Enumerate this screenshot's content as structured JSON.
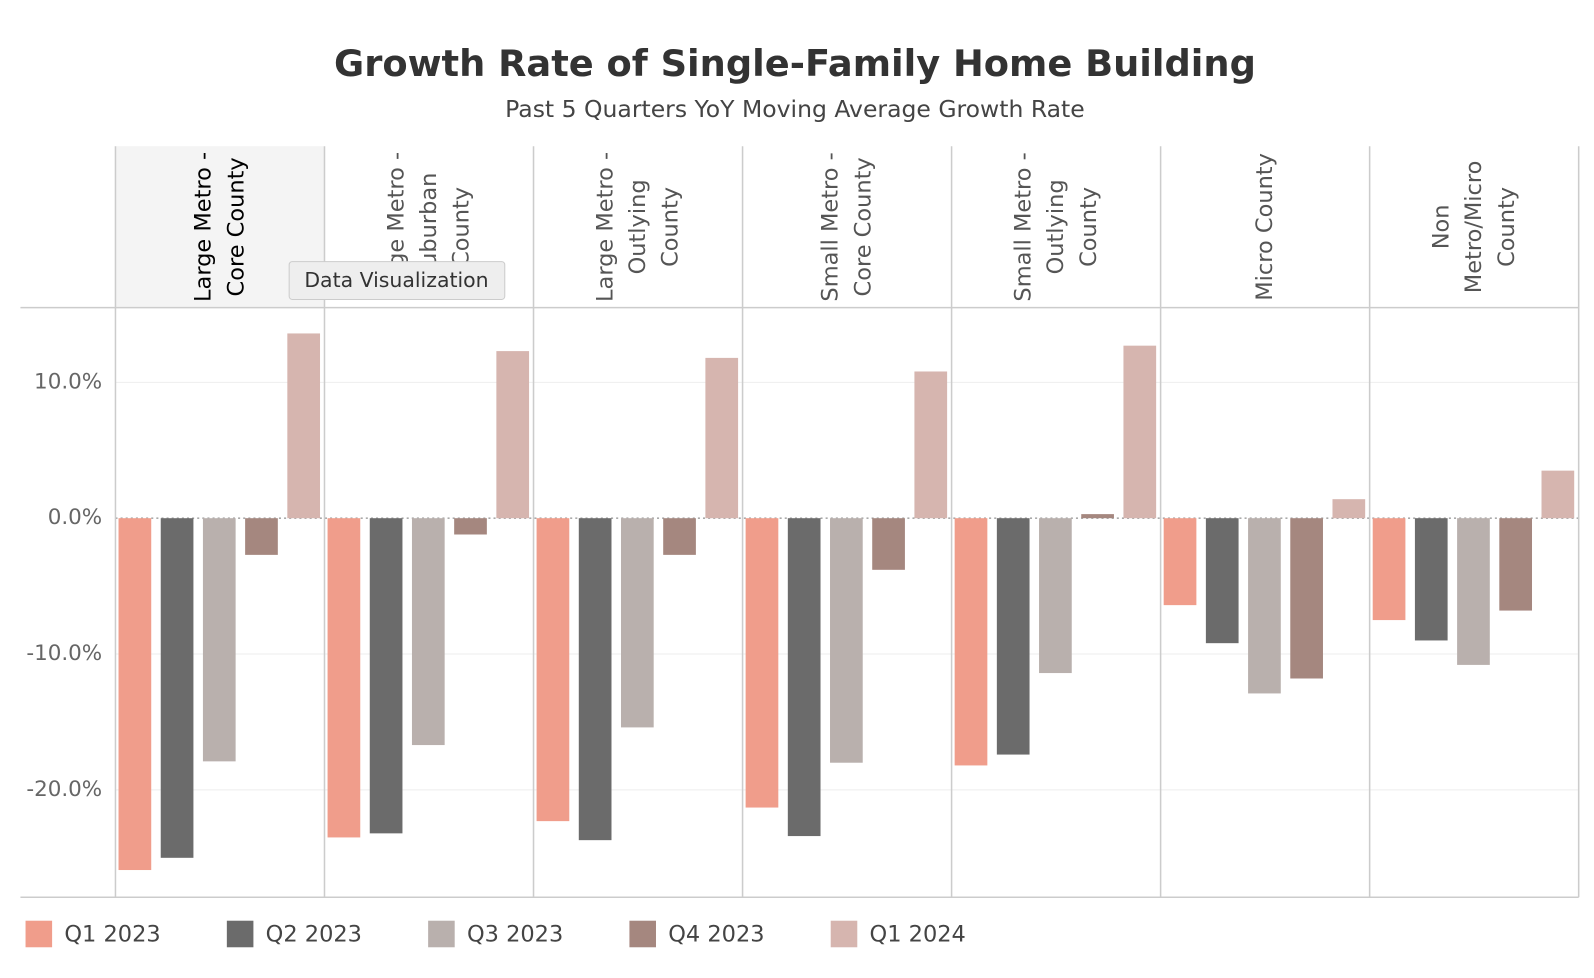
{
  "chart_data": {
    "type": "bar",
    "title": "Growth Rate of Single-Family Home Building",
    "subtitle": "Past 5 Quarters YoY Moving Average Growth Rate",
    "tooltip": "Data Visualization",
    "categories": [
      "Large Metro - Core County",
      "Large Metro - Suburban County",
      "Large Metro - Outlying County",
      "Small Metro - Core County",
      "Small Metro - Outlying County",
      "Micro County",
      "Non Metro/Micro County"
    ],
    "series": [
      {
        "name": "Q1 2023",
        "color": "#f09d8b",
        "values": [
          -25.9,
          -23.5,
          -22.3,
          -21.3,
          -18.2,
          -6.4,
          -7.5
        ]
      },
      {
        "name": "Q2 2023",
        "color": "#6b6b6b",
        "values": [
          -25.0,
          -23.2,
          -23.7,
          -23.4,
          -17.4,
          -9.2,
          -9.0
        ]
      },
      {
        "name": "Q3 2023",
        "color": "#b9b0ad",
        "values": [
          -17.9,
          -16.7,
          -15.4,
          -18.0,
          -11.4,
          -12.9,
          -10.8
        ]
      },
      {
        "name": "Q4 2023",
        "color": "#a5877f",
        "values": [
          -2.7,
          -1.2,
          -2.7,
          -3.8,
          0.3,
          -11.8,
          -6.8
        ]
      },
      {
        "name": "Q1 2024",
        "color": "#d6b5af",
        "values": [
          13.6,
          12.3,
          11.8,
          10.8,
          12.7,
          1.4,
          3.5
        ]
      }
    ],
    "ylim": [
      -27.9,
      15.5
    ],
    "yticks": [
      {
        "value": -20,
        "label": "-20.0%"
      },
      {
        "value": -10,
        "label": "-10.0%"
      },
      {
        "value": 0,
        "label": "0.0%"
      },
      {
        "value": 10,
        "label": "10.0%"
      }
    ],
    "grid": true
  }
}
